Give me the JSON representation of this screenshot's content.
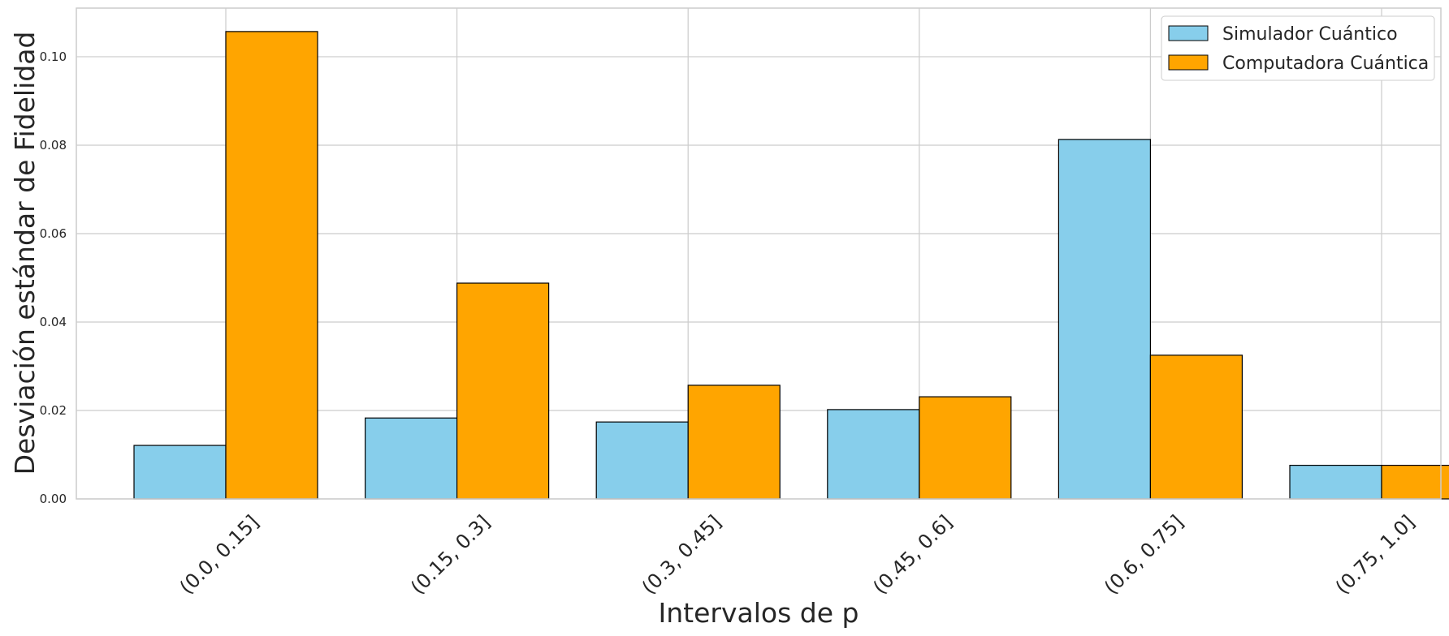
{
  "chart_data": {
    "type": "bar",
    "title": "",
    "xlabel": "Intervalos de p",
    "ylabel": "Desviación estándar de Fidelidad",
    "categories": [
      "(0.0, 0.15]",
      "(0.15, 0.3]",
      "(0.3, 0.45]",
      "(0.45, 0.6]",
      "(0.6, 0.75]",
      "(0.75, 1.0]"
    ],
    "series": [
      {
        "name": "Simulador Cuántico",
        "color": "#87ceeb",
        "values": [
          0.0121,
          0.0183,
          0.0174,
          0.0202,
          0.0813,
          0.0076
        ]
      },
      {
        "name": "Computadora Cuántica",
        "color": "#ffa500",
        "values": [
          0.1057,
          0.0488,
          0.0257,
          0.0231,
          0.0325,
          0.0076
        ]
      }
    ],
    "ylim": [
      0,
      0.111
    ],
    "yticks": [
      "0.00",
      "0.02",
      "0.04",
      "0.06",
      "0.08",
      "0.10"
    ],
    "grid": true,
    "legend_position": "top-right"
  }
}
